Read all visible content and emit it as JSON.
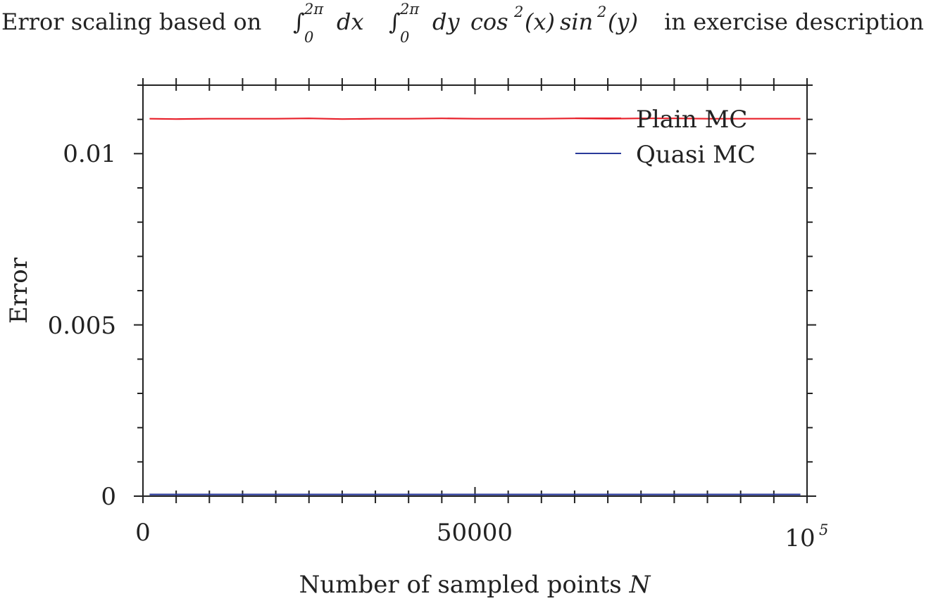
{
  "chart_data": {
    "type": "line",
    "title": {
      "prefix": "Error scaling based on ",
      "integral_1_upper": "2π",
      "integral_1_lower": "0",
      "integral_1_var": "dx",
      "integral_2_upper": "2π",
      "integral_2_lower": "0",
      "integral_2_var": "dy",
      "integrand_a": "cos",
      "integrand_a_exp": "2",
      "integrand_a_arg": "(x)",
      "integrand_b": "sin",
      "integrand_b_exp": "2",
      "integrand_b_arg": "(y)",
      "suffix": " in exercise description"
    },
    "xlabel": {
      "text": "Number of sampled points ",
      "var": "N"
    },
    "ylabel": "Error",
    "xlim": [
      0,
      100000
    ],
    "ylim": [
      0,
      0.012
    ],
    "x_ticks": [
      {
        "value": 0,
        "label": "0"
      },
      {
        "value": 50000,
        "label": "50000"
      },
      {
        "value": 100000,
        "label": "10",
        "exp": "5"
      }
    ],
    "y_ticks": [
      {
        "value": 0,
        "label": "0"
      },
      {
        "value": 0.005,
        "label": "0.005"
      },
      {
        "value": 0.01,
        "label": "0.01"
      }
    ],
    "grid": false,
    "legend_position": "top-right",
    "series": [
      {
        "name": "Plain MC",
        "color": "#e8202a",
        "x": [
          1000,
          5000,
          10000,
          15000,
          20000,
          25000,
          30000,
          35000,
          40000,
          45000,
          50000,
          55000,
          60000,
          65000,
          70000,
          75000,
          80000,
          85000,
          90000,
          95000,
          99000
        ],
        "y": [
          0.01102,
          0.01101,
          0.01102,
          0.01102,
          0.01102,
          0.01103,
          0.01101,
          0.01102,
          0.01102,
          0.01103,
          0.01102,
          0.01102,
          0.01102,
          0.01103,
          0.01102,
          0.01103,
          0.01103,
          0.01102,
          0.01102,
          0.01102,
          0.01102
        ]
      },
      {
        "name": "Quasi MC",
        "color": "#2a3a9a",
        "x": [
          1000,
          10000,
          20000,
          30000,
          40000,
          50000,
          60000,
          70000,
          80000,
          90000,
          99000
        ],
        "y": [
          5e-05,
          5e-05,
          5e-05,
          5e-05,
          5e-05,
          5e-05,
          5e-05,
          5e-05,
          5e-05,
          5e-05,
          5e-05
        ]
      }
    ]
  }
}
